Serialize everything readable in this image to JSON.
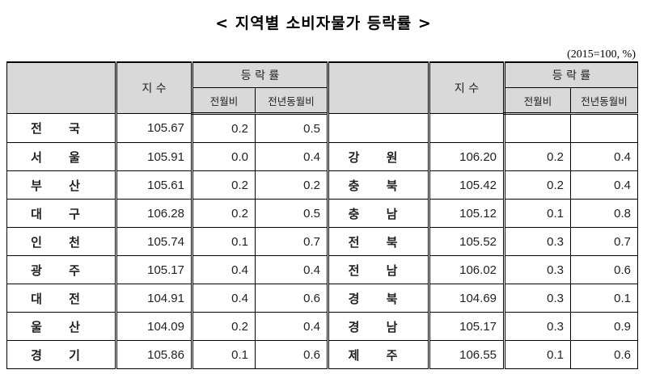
{
  "title": "< 지역별 소비자물가 등락률 >",
  "unit": "(2015=100,  %)",
  "headers": {
    "index": "지 수",
    "change": "등 락 률",
    "mom": "전월비",
    "yoy": "전년동월비"
  },
  "left_rows": [
    {
      "region": "전  국",
      "index": "105.67",
      "mom": "0.2",
      "yoy": "0.5"
    },
    {
      "region": "서 울",
      "index": "105.91",
      "mom": "0.0",
      "yoy": "0.4"
    },
    {
      "region": "부 산",
      "index": "105.61",
      "mom": "0.2",
      "yoy": "0.2"
    },
    {
      "region": "대 구",
      "index": "106.28",
      "mom": "0.2",
      "yoy": "0.5"
    },
    {
      "region": "인 천",
      "index": "105.74",
      "mom": "0.1",
      "yoy": "0.7"
    },
    {
      "region": "광 주",
      "index": "105.17",
      "mom": "0.4",
      "yoy": "0.4"
    },
    {
      "region": "대 전",
      "index": "104.91",
      "mom": "0.4",
      "yoy": "0.6"
    },
    {
      "region": "울 산",
      "index": "104.09",
      "mom": "0.2",
      "yoy": "0.4"
    },
    {
      "region": "경 기",
      "index": "105.86",
      "mom": "0.1",
      "yoy": "0.6"
    }
  ],
  "right_rows": [
    {
      "region": "",
      "index": "",
      "mom": "",
      "yoy": ""
    },
    {
      "region": "강 원",
      "index": "106.20",
      "mom": "0.2",
      "yoy": "0.4"
    },
    {
      "region": "충 북",
      "index": "105.42",
      "mom": "0.2",
      "yoy": "0.4"
    },
    {
      "region": "충 남",
      "index": "105.12",
      "mom": "0.1",
      "yoy": "0.8"
    },
    {
      "region": "전 북",
      "index": "105.52",
      "mom": "0.3",
      "yoy": "0.7"
    },
    {
      "region": "전 남",
      "index": "106.02",
      "mom": "0.3",
      "yoy": "0.6"
    },
    {
      "region": "경 북",
      "index": "104.69",
      "mom": "0.3",
      "yoy": "0.1"
    },
    {
      "region": "경 남",
      "index": "105.17",
      "mom": "0.3",
      "yoy": "0.9"
    },
    {
      "region": "제 주",
      "index": "106.55",
      "mom": "0.1",
      "yoy": "0.6"
    }
  ]
}
